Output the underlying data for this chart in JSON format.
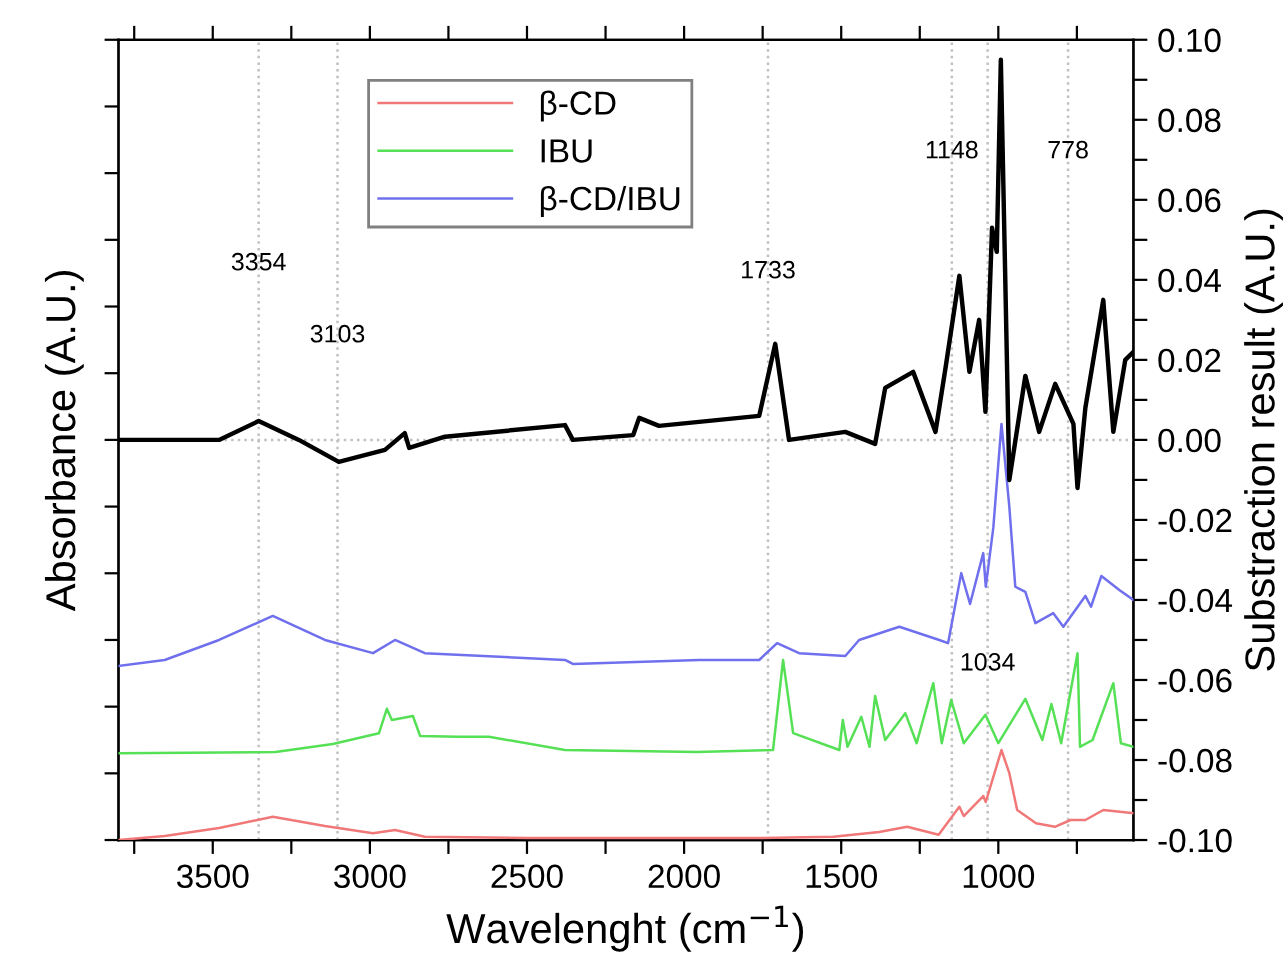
{
  "chart_data": {
    "type": "line",
    "xlabel": "Wavelenght (cm$^{−1}$)",
    "ylabel": "Absorbance (A.U.)",
    "y2label": "Substraction result (A.U.)",
    "xlim": [
      3800,
      570
    ],
    "xticks": [
      {
        "value": 3750,
        "label": null
      },
      3500,
      {
        "value": 3250,
        "label": null
      },
      3000,
      {
        "value": 2750,
        "label": null
      },
      2500,
      {
        "value": 2250,
        "label": null
      },
      2000,
      {
        "value": 1750,
        "label": null
      },
      1500,
      {
        "value": 1250,
        "label": null
      },
      1000,
      {
        "value": 750,
        "label": null
      }
    ],
    "y2lim": [
      -0.1,
      0.1
    ],
    "y2ticks": [
      {
        "value": -0.1,
        "label": "-0.10"
      },
      {
        "value": -0.09,
        "label": null
      },
      -0.08,
      {
        "value": -0.07,
        "label": null
      },
      -0.06,
      {
        "value": -0.05,
        "label": null
      },
      -0.04,
      {
        "value": -0.03,
        "label": null
      },
      -0.02,
      {
        "value": -0.01,
        "label": null
      },
      {
        "value": 0.0,
        "label": "0.00"
      },
      {
        "value": 0.01,
        "label": null
      },
      0.02,
      {
        "value": 0.03,
        "label": null
      },
      0.04,
      {
        "value": 0.05,
        "label": null
      },
      0.06,
      {
        "value": 0.07,
        "label": null
      },
      0.08,
      {
        "value": 0.09,
        "label": null
      },
      {
        "value": 0.1,
        "label": "0.10"
      }
    ],
    "legend": "top left",
    "grid": false,
    "marker": "none",
    "line_style": "solid",
    "series": [
      {
        "name": "β-CD",
        "color": "#f07878",
        "axis": "y2",
        "x": [
          3800,
          3653,
          3480,
          3309,
          3143,
          2990,
          2920,
          2825,
          2500,
          2000,
          1760,
          1525,
          1379,
          1290,
          1190,
          1124,
          1110,
          1048,
          1040,
          990,
          965,
          940,
          880,
          820,
          770,
          723,
          666,
          570
        ],
        "values": [
          -0.1,
          -0.099,
          -0.097,
          -0.0942,
          -0.0965,
          -0.0983,
          -0.0975,
          -0.0992,
          -0.0995,
          -0.0995,
          -0.0995,
          -0.0992,
          -0.098,
          -0.0967,
          -0.0987,
          -0.0917,
          -0.094,
          -0.089,
          -0.0905,
          -0.0775,
          -0.0833,
          -0.0925,
          -0.0958,
          -0.0967,
          -0.095,
          -0.095,
          -0.0925,
          -0.0933
        ]
      },
      {
        "name": "IBU",
        "color": "#55e055",
        "axis": "y2",
        "x": [
          3800,
          3300,
          3118,
          2971,
          2946,
          2930,
          2863,
          2840,
          2717,
          2621,
          2379,
          1960,
          1717,
          1685,
          1653,
          1506,
          1495,
          1480,
          1436,
          1410,
          1392,
          1360,
          1296,
          1260,
          1207,
          1180,
          1150,
          1110,
          1041,
          1000,
          914,
          860,
          831,
          800,
          748,
          740,
          700,
          634,
          610,
          570
        ],
        "values": [
          -0.0783,
          -0.078,
          -0.076,
          -0.0733,
          -0.0672,
          -0.07,
          -0.069,
          -0.074,
          -0.0742,
          -0.0742,
          -0.0775,
          -0.078,
          -0.0775,
          -0.055,
          -0.0733,
          -0.0775,
          -0.07,
          -0.0767,
          -0.0692,
          -0.0767,
          -0.064,
          -0.075,
          -0.0683,
          -0.0758,
          -0.0608,
          -0.0758,
          -0.065,
          -0.0758,
          -0.0687,
          -0.0758,
          -0.0647,
          -0.075,
          -0.066,
          -0.0758,
          -0.0533,
          -0.0767,
          -0.075,
          -0.0608,
          -0.0758,
          -0.0767
        ]
      },
      {
        "name": "β-CD/IBU",
        "color": "#7070ee",
        "axis": "y2",
        "x": [
          3800,
          3653,
          3480,
          3309,
          3143,
          2990,
          2920,
          2825,
          2379,
          2354,
          1952,
          1761,
          1704,
          1634,
          1487,
          1443,
          1315,
          1188,
          1160,
          1118,
          1090,
          1048,
          1040,
          1016,
          990,
          965,
          946,
          914,
          882,
          825,
          793,
          723,
          705,
          672,
          615,
          570
        ],
        "values": [
          -0.0565,
          -0.055,
          -0.05,
          -0.044,
          -0.05,
          -0.0533,
          -0.05,
          -0.0533,
          -0.055,
          -0.056,
          -0.055,
          -0.055,
          -0.0508,
          -0.0533,
          -0.054,
          -0.05,
          -0.0467,
          -0.05,
          -0.0508,
          -0.0333,
          -0.041,
          -0.0283,
          -0.0367,
          -0.022,
          0.004,
          -0.0167,
          -0.0367,
          -0.038,
          -0.0458,
          -0.0433,
          -0.0467,
          -0.039,
          -0.0417,
          -0.034,
          -0.0375,
          -0.04
        ]
      },
      {
        "color": "#000000",
        "axis": "y2",
        "x": [
          3800,
          3480,
          3354,
          3226,
          3099,
          2952,
          2889,
          2875,
          2761,
          2379,
          2354,
          2162,
          2143,
          2080,
          1761,
          1710,
          1666,
          1487,
          1392,
          1360,
          1271,
          1200,
          1168,
          1124,
          1092,
          1061,
          1041,
          1020,
          1005,
          992,
          965,
          914,
          870,
          819,
          761,
          748,
          723,
          666,
          634,
          596,
          570
        ],
        "values": [
          0.0,
          0.0,
          0.0047,
          0.0,
          -0.0055,
          -0.0025,
          0.0017,
          -0.002,
          0.0008,
          0.0037,
          0.0,
          0.0012,
          0.0055,
          0.0035,
          0.006,
          0.024,
          0.0,
          0.002,
          -0.001,
          0.013,
          0.017,
          0.002,
          0.018,
          0.041,
          0.017,
          0.03,
          0.007,
          0.053,
          0.047,
          0.095,
          -0.01,
          0.016,
          0.002,
          0.014,
          0.004,
          -0.012,
          0.008,
          0.035,
          0.002,
          0.02,
          0.022
        ]
      }
    ],
    "ref_lines": [
      {
        "axis": "x",
        "value": 3354,
        "label": "3354",
        "color": "#c0c0c0",
        "line_style": "dotted"
      },
      {
        "axis": "x",
        "value": 3103,
        "label": "3103",
        "color": "#c0c0c0",
        "line_style": "dotted"
      },
      {
        "axis": "x",
        "value": 1733,
        "label": "1733",
        "color": "#c0c0c0",
        "line_style": "dotted"
      },
      {
        "axis": "x",
        "value": 1148,
        "label": "1148",
        "color": "#c0c0c0",
        "line_style": "dotted"
      },
      {
        "axis": "x",
        "value": 1034,
        "label": "1034",
        "color": "#c0c0c0",
        "line_style": "dotted"
      },
      {
        "axis": "x",
        "value": 778,
        "label": "778",
        "color": "#c0c0c0",
        "line_style": "dotted"
      },
      {
        "axis": "y2",
        "value": 0.0,
        "color": "#c0c0c0",
        "line_style": "dotted"
      }
    ]
  }
}
